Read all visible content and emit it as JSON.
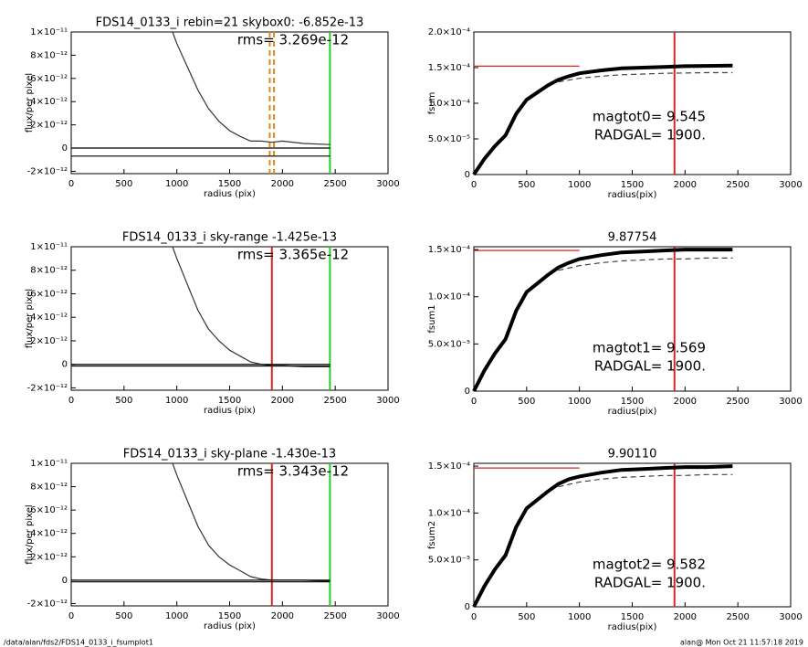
{
  "chart_data": [
    {
      "type": "line",
      "title": "FDS14_0133_i rebin=21     skybox0: -6.852e-13",
      "annotations": [
        "rms= 3.269e-12"
      ],
      "xlabel": "radius (pix)",
      "ylabel": "flux/per pixel",
      "xlim": [
        0,
        3000
      ],
      "xticks": [
        0,
        500,
        1000,
        1500,
        2000,
        2500,
        3000
      ],
      "ylim": [
        -2.2e-12,
        1e-11
      ],
      "yticks": [
        {
          "value": -2e-12,
          "label": "-2×10⁻¹²"
        },
        0,
        {
          "value": 2e-12,
          "label": "2×10⁻¹²"
        },
        {
          "value": 4e-12,
          "label": "4×10⁻¹²"
        },
        {
          "value": 6e-12,
          "label": "6×10⁻¹²"
        },
        {
          "value": 8e-12,
          "label": "8×10⁻¹²"
        },
        {
          "value": 1e-11,
          "label": "1×10⁻¹¹"
        }
      ],
      "series": [
        {
          "color": "#333333",
          "x": [
            960,
            1000,
            1100,
            1200,
            1300,
            1400,
            1500,
            1600,
            1700,
            1800,
            1900,
            2000,
            2200,
            2450
          ],
          "values": [
            1e-11,
            9e-12,
            7e-12,
            5e-12,
            3.4e-12,
            2.3e-12,
            1.5e-12,
            1e-12,
            6e-13,
            6e-13,
            5e-13,
            6e-13,
            4e-13,
            3e-13
          ]
        },
        {
          "color": "#000000",
          "x": [
            0,
            2450
          ],
          "values": [
            0,
            0
          ]
        },
        {
          "color": "#000000",
          "x": [
            0,
            2450
          ],
          "values": [
            -6.852e-13,
            -6.852e-13
          ]
        }
      ],
      "vlines": [
        {
          "x": 1880,
          "color": "#e08a1e",
          "dash": true
        },
        {
          "x": 1920,
          "color": "#e08a1e",
          "dash": true
        },
        {
          "x": 2450,
          "color": "#22cc22"
        }
      ]
    },
    {
      "type": "line",
      "title": "",
      "annotations": [
        "magtot0=   9.545",
        "RADGAL=   1900."
      ],
      "xlabel": "radius(pix)",
      "ylabel": "fsum",
      "xlim": [
        0,
        3000
      ],
      "xticks": [
        0,
        500,
        1000,
        1500,
        2000,
        2500,
        3000
      ],
      "ylim": [
        0,
        0.0002
      ],
      "yticks": [
        0,
        {
          "value": 5e-05,
          "label": "5.0×10⁻⁵"
        },
        {
          "value": 0.0001,
          "label": "1.0×10⁻⁴"
        },
        {
          "value": 0.00015,
          "label": "1.5×10⁻⁴"
        },
        {
          "value": 0.0002,
          "label": "2.0×10⁻⁴"
        }
      ],
      "series": [
        {
          "color": "#000000",
          "width": 4,
          "x": [
            0,
            100,
            200,
            300,
            400,
            500,
            600,
            700,
            800,
            900,
            1000,
            1200,
            1400,
            1600,
            1800,
            2000,
            2200,
            2450
          ],
          "values": [
            0,
            2.2e-05,
            4e-05,
            5.5e-05,
            8.5e-05,
            0.000105,
            0.000115,
            0.000125,
            0.000133,
            0.000138,
            0.000142,
            0.000146,
            0.000149,
            0.00015,
            0.000151,
            0.000152,
            0.0001525,
            0.000153
          ]
        },
        {
          "color": "#444444",
          "dash": true,
          "x": [
            800,
            1000,
            1200,
            1400,
            1600,
            1800,
            2000,
            2200,
            2450
          ],
          "values": [
            0.00013,
            0.000135,
            0.000138,
            0.00014,
            0.000141,
            0.000142,
            0.0001425,
            0.000143,
            0.000143
          ]
        },
        {
          "color": "#dd2222",
          "x": [
            0,
            1000
          ],
          "values": [
            0.000152,
            0.000152
          ]
        }
      ],
      "vlines": [
        {
          "x": 1900,
          "color": "#dd2222"
        }
      ]
    },
    {
      "type": "line",
      "title": "FDS14_0133_i sky-range -1.425e-13",
      "annotations": [
        "rms= 3.365e-12"
      ],
      "xlabel": "radius (pix)",
      "ylabel": "flux/per pixel",
      "xlim": [
        0,
        3000
      ],
      "xticks": [
        0,
        500,
        1000,
        1500,
        2000,
        2500,
        3000
      ],
      "ylim": [
        -2.2e-12,
        1e-11
      ],
      "yticks": [
        {
          "value": -2e-12,
          "label": "-2×10⁻¹²"
        },
        0,
        {
          "value": 2e-12,
          "label": "2×10⁻¹²"
        },
        {
          "value": 4e-12,
          "label": "4×10⁻¹²"
        },
        {
          "value": 6e-12,
          "label": "6×10⁻¹²"
        },
        {
          "value": 8e-12,
          "label": "8×10⁻¹²"
        },
        {
          "value": 1e-11,
          "label": "1×10⁻¹¹"
        }
      ],
      "series": [
        {
          "color": "#333333",
          "x": [
            960,
            1000,
            1100,
            1200,
            1300,
            1400,
            1500,
            1600,
            1700,
            1800,
            1900,
            2000,
            2200,
            2450
          ],
          "values": [
            1e-11,
            9e-12,
            6.8e-12,
            4.6e-12,
            3e-12,
            2e-12,
            1.2e-12,
            7e-13,
            2e-13,
            0,
            -1e-13,
            -1e-13,
            -2e-13,
            -2e-13
          ]
        },
        {
          "color": "#000000",
          "x": [
            0,
            2450
          ],
          "values": [
            0,
            0
          ]
        },
        {
          "color": "#000000",
          "x": [
            0,
            2450
          ],
          "values": [
            -1.425e-13,
            -1.425e-13
          ]
        }
      ],
      "vlines": [
        {
          "x": 1900,
          "color": "#dd2222"
        },
        {
          "x": 2450,
          "color": "#22cc22"
        }
      ]
    },
    {
      "type": "line",
      "title": "9.87754",
      "annotations": [
        "magtot1=   9.569",
        "RADGAL=   1900."
      ],
      "xlabel": "radius(pix)",
      "ylabel": "fsum1",
      "xlim": [
        0,
        3000
      ],
      "xticks": [
        0,
        500,
        1000,
        1500,
        2000,
        2500,
        3000
      ],
      "ylim": [
        0,
        0.000153
      ],
      "yticks": [
        0,
        {
          "value": 5e-05,
          "label": "5.0×10⁻⁵"
        },
        {
          "value": 0.0001,
          "label": "1.0×10⁻⁴"
        },
        {
          "value": 0.00015,
          "label": "1.5×10⁻⁴"
        }
      ],
      "series": [
        {
          "color": "#000000",
          "width": 4,
          "x": [
            0,
            100,
            200,
            300,
            400,
            500,
            600,
            700,
            800,
            900,
            1000,
            1200,
            1400,
            1600,
            1800,
            2000,
            2200,
            2450
          ],
          "values": [
            0,
            2.2e-05,
            4e-05,
            5.5e-05,
            8.5e-05,
            0.000105,
            0.000114,
            0.000123,
            0.000131,
            0.000136,
            0.00014,
            0.000144,
            0.000147,
            0.000148,
            0.000149,
            0.00015,
            0.00015,
            0.00015
          ]
        },
        {
          "color": "#444444",
          "dash": true,
          "x": [
            800,
            1000,
            1200,
            1400,
            1600,
            1800,
            2000,
            2200,
            2450
          ],
          "values": [
            0.000128,
            0.000133,
            0.000136,
            0.000138,
            0.000139,
            0.00014,
            0.00014,
            0.000141,
            0.000141
          ]
        },
        {
          "color": "#dd2222",
          "x": [
            0,
            1000
          ],
          "values": [
            0.000149,
            0.000149
          ]
        }
      ],
      "vlines": [
        {
          "x": 1900,
          "color": "#dd2222"
        }
      ]
    },
    {
      "type": "line",
      "title": "FDS14_0133_i sky-plane -1.430e-13",
      "annotations": [
        "rms= 3.343e-12"
      ],
      "xlabel": "radius (pix)",
      "ylabel": "flux/per pixel",
      "xlim": [
        0,
        3000
      ],
      "xticks": [
        0,
        500,
        1000,
        1500,
        2000,
        2500,
        3000
      ],
      "ylim": [
        -2.2e-12,
        1e-11
      ],
      "yticks": [
        {
          "value": -2e-12,
          "label": "-2×10⁻¹²"
        },
        0,
        {
          "value": 2e-12,
          "label": "2×10⁻¹²"
        },
        {
          "value": 4e-12,
          "label": "4×10⁻¹²"
        },
        {
          "value": 6e-12,
          "label": "6×10⁻¹²"
        },
        {
          "value": 8e-12,
          "label": "8×10⁻¹²"
        },
        {
          "value": 1e-11,
          "label": "1×10⁻¹¹"
        }
      ],
      "series": [
        {
          "color": "#333333",
          "x": [
            960,
            1000,
            1100,
            1200,
            1300,
            1400,
            1500,
            1600,
            1700,
            1800,
            1900,
            2000,
            2200,
            2450
          ],
          "values": [
            1e-11,
            9e-12,
            6.8e-12,
            4.6e-12,
            3e-12,
            2e-12,
            1.3e-12,
            8e-13,
            3e-13,
            1e-13,
            0,
            0,
            0,
            -1e-13
          ]
        },
        {
          "color": "#000000",
          "x": [
            0,
            2450
          ],
          "values": [
            0,
            0
          ]
        },
        {
          "color": "#000000",
          "x": [
            0,
            2450
          ],
          "values": [
            -1.43e-13,
            -1.43e-13
          ]
        }
      ],
      "vlines": [
        {
          "x": 1900,
          "color": "#dd2222"
        },
        {
          "x": 2450,
          "color": "#22cc22"
        }
      ]
    },
    {
      "type": "line",
      "title": "9.90110",
      "annotations": [
        "magtot2=   9.582",
        "RADGAL=   1900."
      ],
      "xlabel": "radius(pix)",
      "ylabel": "fsum2",
      "xlim": [
        0,
        3000
      ],
      "xticks": [
        0,
        500,
        1000,
        1500,
        2000,
        2500,
        3000
      ],
      "ylim": [
        0,
        0.000153
      ],
      "yticks": [
        0,
        {
          "value": 5e-05,
          "label": "5.0×10⁻⁵"
        },
        {
          "value": 0.0001,
          "label": "1.0×10⁻⁴"
        },
        {
          "value": 0.00015,
          "label": "1.5×10⁻⁴"
        }
      ],
      "series": [
        {
          "color": "#000000",
          "width": 4,
          "x": [
            0,
            100,
            200,
            300,
            400,
            500,
            600,
            700,
            800,
            900,
            1000,
            1200,
            1400,
            1600,
            1800,
            2000,
            2200,
            2450
          ],
          "values": [
            0,
            2.2e-05,
            4e-05,
            5.5e-05,
            8.5e-05,
            0.000105,
            0.000114,
            0.000123,
            0.000131,
            0.000136,
            0.000139,
            0.000143,
            0.000146,
            0.000147,
            0.000148,
            0.000149,
            0.000149,
            0.00015
          ]
        },
        {
          "color": "#444444",
          "dash": true,
          "x": [
            800,
            1000,
            1200,
            1400,
            1600,
            1800,
            2000,
            2200,
            2450
          ],
          "values": [
            0.000128,
            0.000133,
            0.000136,
            0.000138,
            0.000139,
            0.00014,
            0.00014,
            0.000141,
            0.000141
          ]
        },
        {
          "color": "#dd2222",
          "x": [
            0,
            1000
          ],
          "values": [
            0.000148,
            0.000148
          ]
        }
      ],
      "vlines": [
        {
          "x": 1900,
          "color": "#dd2222"
        }
      ]
    }
  ],
  "footer_left": "/data/alan/fds2/FDS14_0133_i_fsumplot1",
  "footer_right": "alan@  Mon Oct 21 11:57:18 2019"
}
